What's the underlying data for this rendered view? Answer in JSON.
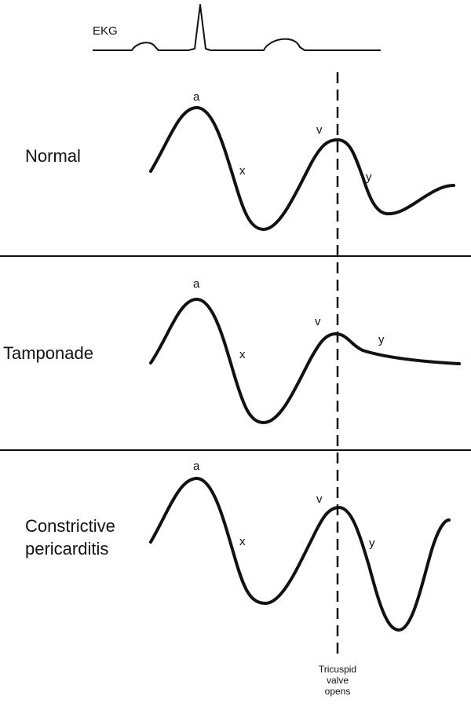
{
  "ekg": {
    "label": "EKG"
  },
  "panels": [
    {
      "label_lines": [
        "Normal"
      ],
      "waves": {
        "a": "a",
        "x": "x",
        "v": "v",
        "y": "y"
      }
    },
    {
      "label_lines": [
        "Tamponade"
      ],
      "waves": {
        "a": "a",
        "x": "x",
        "v": "v",
        "y": "y"
      }
    },
    {
      "label_lines": [
        "Constrictive",
        "pericarditis"
      ],
      "waves": {
        "a": "a",
        "x": "x",
        "v": "v",
        "y": "y"
      }
    }
  ],
  "marker": {
    "label_lines": [
      "Tricuspid",
      "valve",
      "opens"
    ]
  }
}
